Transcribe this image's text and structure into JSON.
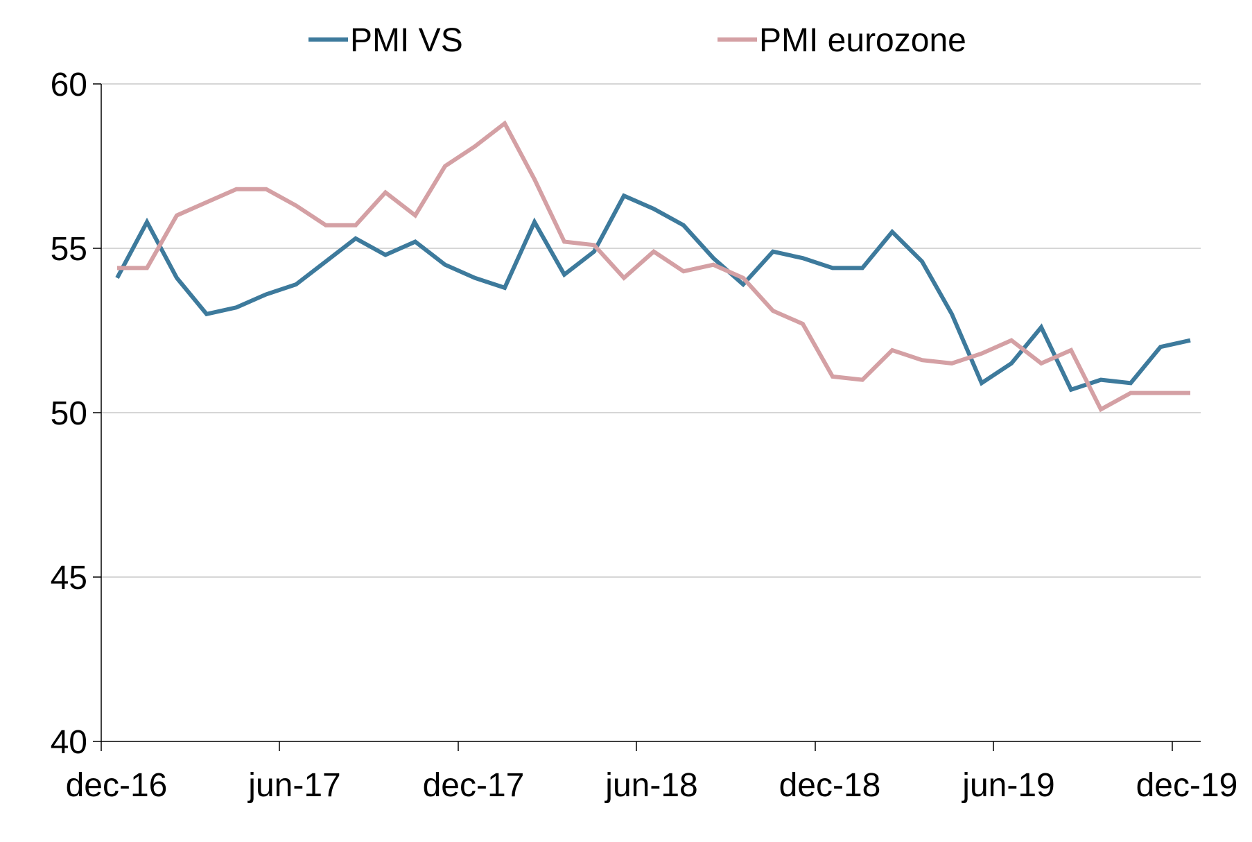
{
  "chart_data": {
    "type": "line",
    "title": "",
    "xlabel": "",
    "ylabel": "",
    "ylim": [
      40,
      60
    ],
    "yticks": [
      40,
      45,
      50,
      55,
      60
    ],
    "x_tick_labels": [
      "dec-16",
      "jun-17",
      "dec-17",
      "jun-18",
      "dec-18",
      "jun-19",
      "dec-19"
    ],
    "x": [
      "dec-16",
      "jan-17",
      "feb-17",
      "mrt-17",
      "apr-17",
      "mei-17",
      "jun-17",
      "jul-17",
      "aug-17",
      "sep-17",
      "okt-17",
      "nov-17",
      "dec-17",
      "jan-18",
      "feb-18",
      "mrt-18",
      "apr-18",
      "mei-18",
      "jun-18",
      "jul-18",
      "aug-18",
      "sep-18",
      "okt-18",
      "nov-18",
      "dec-18",
      "jan-19",
      "feb-19",
      "mrt-19",
      "apr-19",
      "mei-19",
      "jun-19",
      "jul-19",
      "aug-19",
      "sep-19",
      "okt-19",
      "nov-19",
      "dec-19"
    ],
    "grid": true,
    "legend_position": "top",
    "series": [
      {
        "name": "PMI VS",
        "color": "#3d7a9c",
        "values": [
          54.1,
          55.8,
          54.1,
          53.0,
          53.2,
          53.6,
          53.9,
          54.6,
          55.3,
          54.8,
          55.2,
          54.5,
          54.1,
          53.8,
          55.8,
          54.2,
          54.9,
          56.6,
          56.2,
          55.7,
          54.7,
          53.9,
          54.9,
          54.7,
          54.4,
          54.4,
          55.5,
          54.6,
          53.0,
          50.9,
          51.5,
          52.6,
          50.7,
          51.0,
          50.9,
          52.0,
          52.2
        ]
      },
      {
        "name": "PMI eurozone",
        "color": "#d4a0a4",
        "values": [
          54.4,
          54.4,
          56.0,
          56.4,
          56.8,
          56.8,
          56.3,
          55.7,
          55.7,
          56.7,
          56.0,
          57.5,
          58.1,
          58.8,
          57.1,
          55.2,
          55.1,
          54.1,
          54.9,
          54.3,
          54.5,
          54.1,
          53.1,
          52.7,
          51.1,
          51.0,
          51.9,
          51.6,
          51.5,
          51.8,
          52.2,
          51.5,
          51.9,
          50.1,
          50.6,
          50.6,
          50.6
        ]
      }
    ]
  }
}
